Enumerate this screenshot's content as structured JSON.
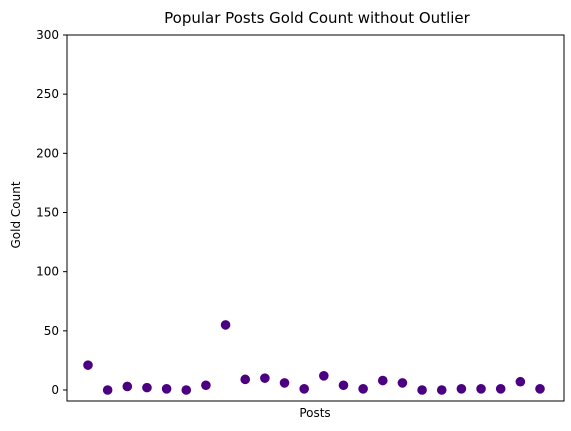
{
  "chart_data": {
    "type": "scatter",
    "title": "Popular Posts Gold Count without Outlier",
    "xlabel": "Posts",
    "ylabel": "Gold Count",
    "ylim": [
      0,
      300
    ],
    "yticks": [
      0,
      50,
      100,
      150,
      200,
      250,
      300
    ],
    "xticks_visible": false,
    "grid": false,
    "color": "#4b0082",
    "y": [
      21,
      0,
      3,
      2,
      1,
      0,
      4,
      55,
      9,
      10,
      6,
      1,
      12,
      4,
      1,
      8,
      6,
      0,
      0,
      1,
      1,
      1,
      7,
      1
    ]
  }
}
